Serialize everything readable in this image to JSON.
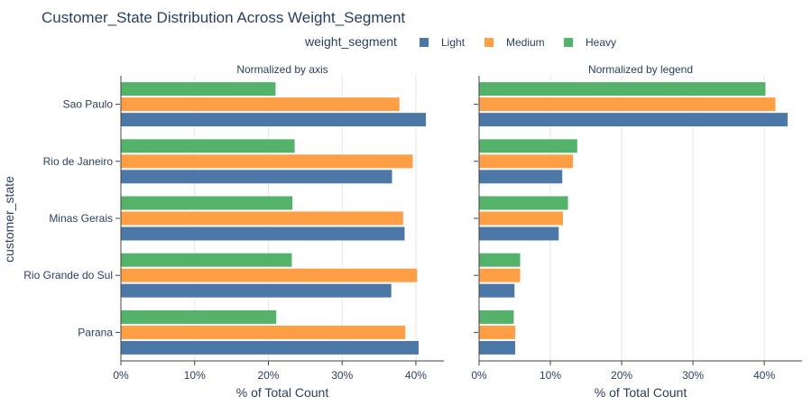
{
  "chart_data": {
    "type": "bar",
    "orientation": "horizontal",
    "title": "Customer_State Distribution Across Weight_Segment",
    "legend": {
      "title": "weight_segment",
      "placement": "top-center",
      "entries": [
        "Light",
        "Medium",
        "Heavy"
      ]
    },
    "colors": {
      "Light": "#4c78a8",
      "Medium": "#ff9f45",
      "Heavy": "#54b26a"
    },
    "ylabel": "customer_state",
    "categories": [
      "Sao Paulo",
      "Rio de Janeiro",
      "Minas Gerais",
      "Rio Grande do Sul",
      "Parana"
    ],
    "subplots": [
      {
        "title": "Normalized by axis",
        "xlabel": "% of Total Count",
        "xlim": [
          0,
          43.8
        ],
        "xticks": [
          0,
          10,
          20,
          30,
          40
        ],
        "xtick_labels": [
          "0%",
          "10%",
          "20%",
          "30%",
          "40%"
        ],
        "series": [
          {
            "name": "Light",
            "values": [
              41.4,
              36.8,
              38.5,
              36.7,
              40.4
            ]
          },
          {
            "name": "Medium",
            "values": [
              37.8,
              39.6,
              38.3,
              40.2,
              38.6
            ]
          },
          {
            "name": "Heavy",
            "values": [
              21.0,
              23.6,
              23.3,
              23.2,
              21.1
            ]
          }
        ]
      },
      {
        "title": "Normalized by legend",
        "xlabel": "% of Total Count",
        "xlim": [
          0,
          45.3
        ],
        "xticks": [
          0,
          10,
          20,
          30,
          40
        ],
        "xtick_labels": [
          "0%",
          "10%",
          "20%",
          "30%",
          "40%"
        ],
        "series": [
          {
            "name": "Light",
            "values": [
              43.3,
              11.7,
              11.2,
              5.0,
              5.1
            ]
          },
          {
            "name": "Medium",
            "values": [
              41.6,
              13.2,
              11.8,
              5.8,
              5.1
            ]
          },
          {
            "name": "Heavy",
            "values": [
              40.2,
              13.8,
              12.5,
              5.8,
              4.9
            ]
          }
        ]
      }
    ]
  }
}
